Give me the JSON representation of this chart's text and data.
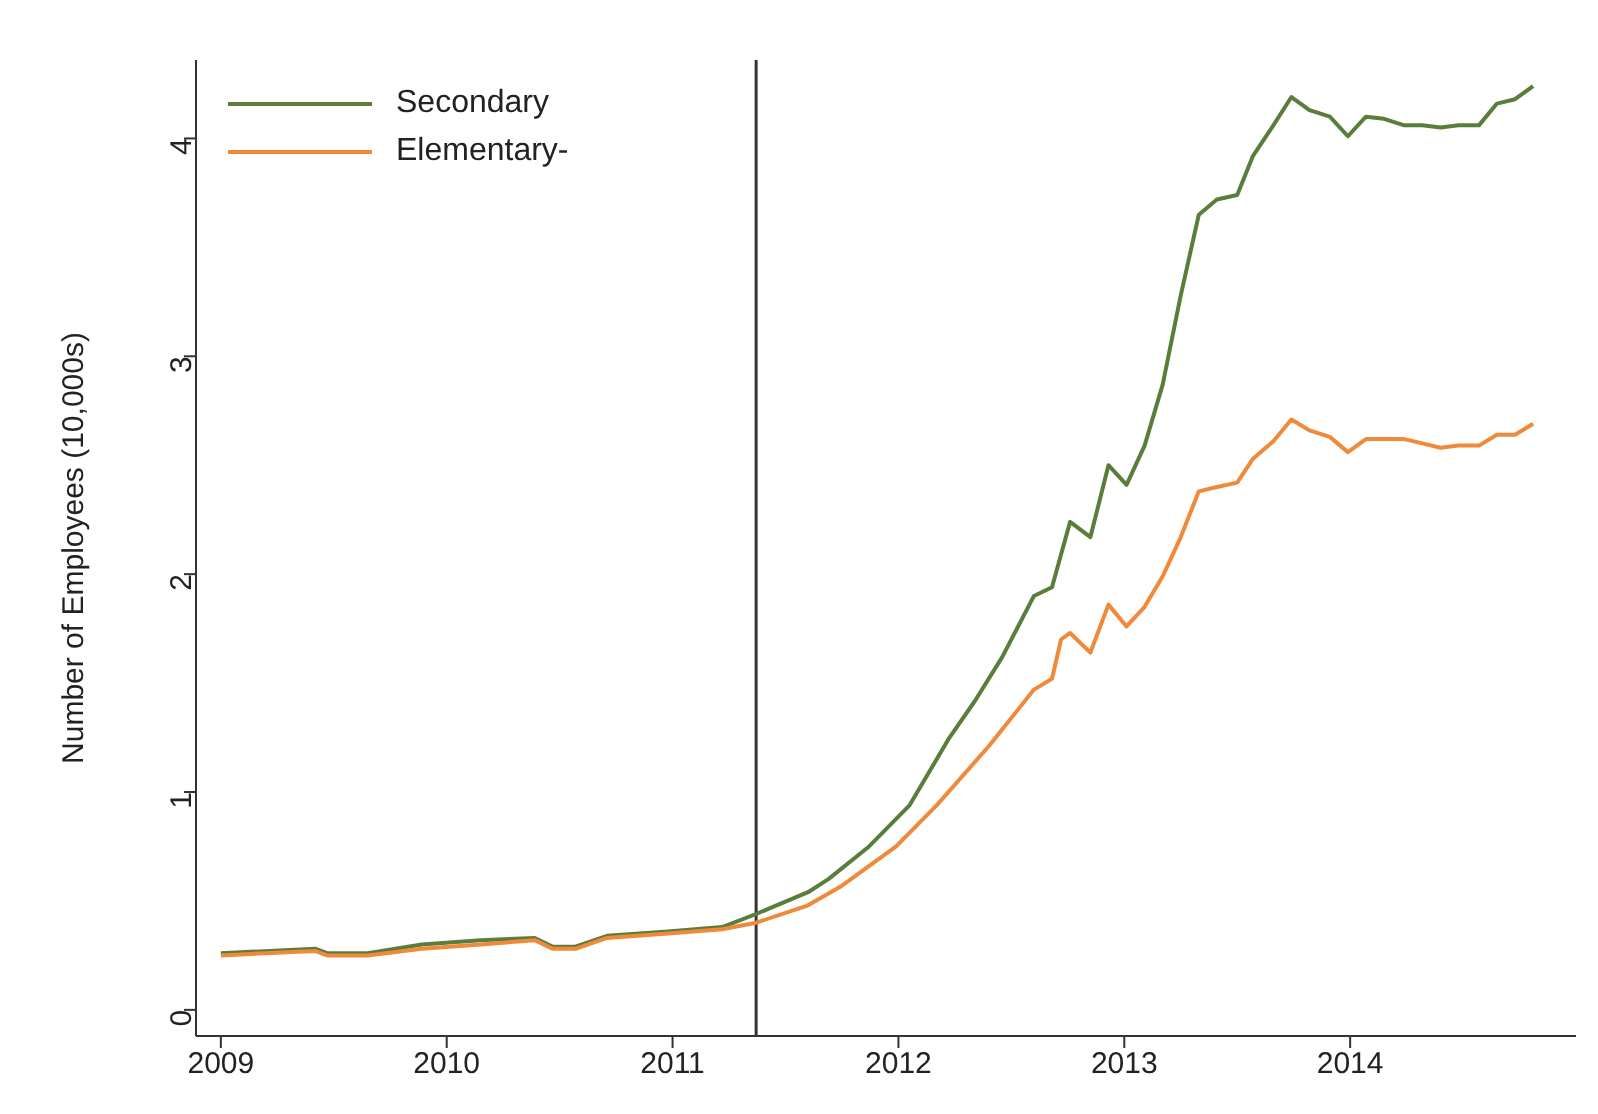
{
  "chart_data": {
    "type": "line",
    "ylabel": "Number of Employees (10,000s)",
    "xlim": [
      2008.89,
      2015
    ],
    "xticks": [
      2009,
      2010,
      2011,
      2012,
      2013,
      2014
    ],
    "ylim": [
      -0.12,
      4.36
    ],
    "yticks": [
      0,
      1,
      2,
      3,
      4
    ],
    "grid": false,
    "legend": "top left",
    "marker": "none",
    "line_style": "solid",
    "ref_lines": [
      {
        "axis": "x",
        "value": 2011.37,
        "color": "#333333"
      }
    ],
    "series": [
      {
        "name": "Secondary",
        "color": "#5a7d3c",
        "x": [
          2009,
          2009.42,
          2009.47,
          2009.65,
          2009.89,
          2010.15,
          2010.39,
          2010.47,
          2010.57,
          2010.71,
          2010.98,
          2011.22,
          2011.37,
          2011.6,
          2011.69,
          2011.87,
          2012.05,
          2012.22,
          2012.34,
          2012.46,
          2012.6,
          2012.68,
          2012.76,
          2012.85,
          2012.93,
          2013.01,
          2013.09,
          2013.17,
          2013.25,
          2013.33,
          2013.41,
          2013.5,
          2013.57,
          2013.66,
          2013.74,
          2013.82,
          2013.91,
          2013.99,
          2014.07,
          2014.15,
          2014.24,
          2014.32,
          2014.4,
          2014.48,
          2014.57,
          2014.65,
          2014.73,
          2014.81
        ],
        "values": [
          0.26,
          0.28,
          0.26,
          0.26,
          0.3,
          0.32,
          0.33,
          0.29,
          0.29,
          0.34,
          0.36,
          0.38,
          0.44,
          0.54,
          0.6,
          0.75,
          0.94,
          1.24,
          1.42,
          1.62,
          1.9,
          1.94,
          2.24,
          2.17,
          2.5,
          2.41,
          2.59,
          2.87,
          3.28,
          3.65,
          3.72,
          3.74,
          3.92,
          4.06,
          4.19,
          4.13,
          4.1,
          4.01,
          4.1,
          4.09,
          4.06,
          4.06,
          4.05,
          4.06,
          4.06,
          4.16,
          4.18,
          4.24
        ]
      },
      {
        "name": "Elementary-",
        "color": "#f0893a",
        "x": [
          2009,
          2009.42,
          2009.47,
          2009.65,
          2009.89,
          2010.15,
          2010.39,
          2010.47,
          2010.57,
          2010.71,
          2010.98,
          2011.22,
          2011.37,
          2011.6,
          2011.75,
          2011.99,
          2012.17,
          2012.4,
          2012.6,
          2012.68,
          2012.72,
          2012.76,
          2012.85,
          2012.93,
          2013.01,
          2013.09,
          2013.17,
          2013.25,
          2013.33,
          2013.41,
          2013.5,
          2013.57,
          2013.66,
          2013.74,
          2013.82,
          2013.91,
          2013.99,
          2014.07,
          2014.15,
          2014.24,
          2014.32,
          2014.4,
          2014.48,
          2014.57,
          2014.65,
          2014.73,
          2014.81
        ],
        "values": [
          0.25,
          0.27,
          0.25,
          0.25,
          0.28,
          0.3,
          0.32,
          0.28,
          0.28,
          0.33,
          0.35,
          0.37,
          0.4,
          0.48,
          0.57,
          0.75,
          0.94,
          1.21,
          1.47,
          1.52,
          1.7,
          1.73,
          1.64,
          1.86,
          1.76,
          1.85,
          1.99,
          2.17,
          2.38,
          2.4,
          2.42,
          2.53,
          2.61,
          2.71,
          2.66,
          2.63,
          2.56,
          2.62,
          2.62,
          2.62,
          2.6,
          2.58,
          2.59,
          2.59,
          2.64,
          2.64,
          2.69
        ]
      }
    ]
  }
}
